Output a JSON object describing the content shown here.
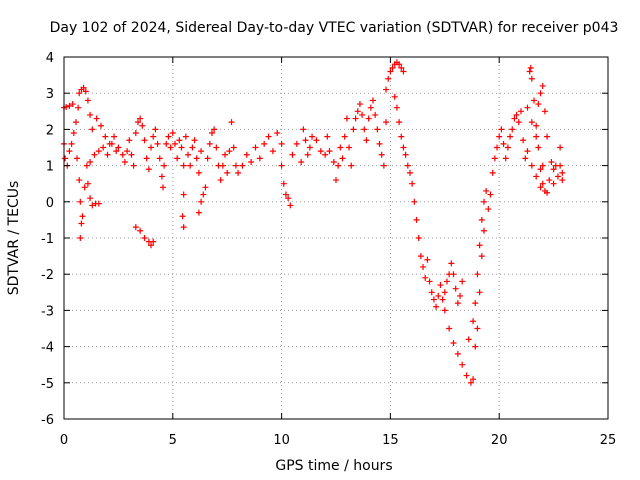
{
  "chart_data": {
    "type": "scatter",
    "title": "Day 102 of 2024, Sidereal Day-to-day VTEC variation (SDTVAR) for receiver p043",
    "xlabel": "GPS time / hours",
    "ylabel": "SDTVAR / TECUs",
    "xlim": [
      0,
      25
    ],
    "ylim": [
      -6,
      4
    ],
    "xticks": [
      0,
      5,
      10,
      15,
      20,
      25
    ],
    "yticks": [
      -6,
      -5,
      -4,
      -3,
      -2,
      -1,
      0,
      1,
      2,
      3,
      4
    ],
    "grid": true,
    "marker": "+",
    "color": "#ff0000",
    "series": [
      {
        "name": "SDTVAR",
        "points": [
          [
            0.0,
            2.6
          ],
          [
            0.1,
            2.62
          ],
          [
            0.25,
            2.65
          ],
          [
            0.4,
            2.7
          ],
          [
            0.0,
            1.6
          ],
          [
            0.05,
            1.2
          ],
          [
            0.15,
            1.0
          ],
          [
            0.25,
            1.4
          ],
          [
            0.35,
            1.6
          ],
          [
            0.45,
            1.9
          ],
          [
            0.55,
            2.2
          ],
          [
            0.65,
            2.6
          ],
          [
            0.7,
            3.0
          ],
          [
            0.8,
            3.1
          ],
          [
            0.9,
            3.15
          ],
          [
            1.0,
            3.05
          ],
          [
            1.1,
            2.8
          ],
          [
            1.2,
            2.4
          ],
          [
            0.6,
            1.2
          ],
          [
            0.7,
            0.6
          ],
          [
            0.75,
            0.0
          ],
          [
            0.8,
            -0.6
          ],
          [
            0.75,
            -1.0
          ],
          [
            0.85,
            -0.4
          ],
          [
            0.95,
            0.4
          ],
          [
            1.05,
            1.0
          ],
          [
            1.1,
            0.5
          ],
          [
            1.2,
            0.1
          ],
          [
            1.3,
            -0.1
          ],
          [
            1.45,
            -0.05
          ],
          [
            1.6,
            -0.05
          ],
          [
            1.2,
            1.1
          ],
          [
            1.4,
            1.3
          ],
          [
            1.6,
            1.4
          ],
          [
            1.8,
            1.5
          ],
          [
            2.0,
            1.3
          ],
          [
            2.2,
            1.6
          ],
          [
            2.4,
            1.4
          ],
          [
            1.3,
            2.0
          ],
          [
            1.5,
            2.3
          ],
          [
            1.7,
            2.1
          ],
          [
            1.9,
            1.8
          ],
          [
            2.1,
            1.6
          ],
          [
            2.3,
            1.8
          ],
          [
            2.5,
            1.5
          ],
          [
            2.7,
            1.3
          ],
          [
            2.8,
            1.1
          ],
          [
            2.9,
            1.4
          ],
          [
            3.0,
            1.7
          ],
          [
            3.1,
            1.3
          ],
          [
            3.2,
            1.0
          ],
          [
            3.3,
            1.9
          ],
          [
            3.4,
            2.2
          ],
          [
            3.5,
            2.3
          ],
          [
            3.6,
            2.1
          ],
          [
            3.7,
            1.7
          ],
          [
            3.8,
            1.2
          ],
          [
            3.9,
            0.9
          ],
          [
            4.0,
            1.5
          ],
          [
            4.1,
            1.8
          ],
          [
            4.2,
            2.0
          ],
          [
            4.3,
            1.6
          ],
          [
            3.3,
            -0.7
          ],
          [
            3.5,
            -0.8
          ],
          [
            3.7,
            -1.0
          ],
          [
            3.9,
            -1.1
          ],
          [
            4.0,
            -1.2
          ],
          [
            4.1,
            -1.1
          ],
          [
            4.4,
            1.2
          ],
          [
            4.5,
            0.7
          ],
          [
            4.55,
            0.4
          ],
          [
            4.6,
            1.0
          ],
          [
            4.7,
            1.6
          ],
          [
            4.8,
            1.8
          ],
          [
            4.9,
            1.5
          ],
          [
            5.0,
            1.9
          ],
          [
            5.1,
            1.6
          ],
          [
            5.2,
            1.2
          ],
          [
            5.3,
            1.7
          ],
          [
            5.4,
            1.5
          ],
          [
            5.5,
            1.0
          ],
          [
            5.5,
            0.2
          ],
          [
            5.45,
            -0.4
          ],
          [
            5.5,
            -0.7
          ],
          [
            5.6,
            1.8
          ],
          [
            5.7,
            1.3
          ],
          [
            5.8,
            1.0
          ],
          [
            5.9,
            1.5
          ],
          [
            6.0,
            1.7
          ],
          [
            6.1,
            1.2
          ],
          [
            6.2,
            0.8
          ],
          [
            6.3,
            1.4
          ],
          [
            6.3,
            0.0
          ],
          [
            6.4,
            0.2
          ],
          [
            6.5,
            0.4
          ],
          [
            6.2,
            -0.3
          ],
          [
            6.6,
            1.2
          ],
          [
            6.7,
            1.6
          ],
          [
            6.8,
            1.9
          ],
          [
            6.9,
            2.0
          ],
          [
            7.0,
            1.5
          ],
          [
            7.1,
            1.0
          ],
          [
            7.2,
            0.6
          ],
          [
            7.3,
            1.0
          ],
          [
            7.4,
            1.3
          ],
          [
            7.5,
            0.8
          ],
          [
            7.6,
            1.4
          ],
          [
            7.7,
            2.2
          ],
          [
            7.8,
            1.5
          ],
          [
            7.9,
            1.0
          ],
          [
            8.0,
            0.8
          ],
          [
            8.2,
            1.0
          ],
          [
            8.4,
            1.3
          ],
          [
            8.6,
            1.1
          ],
          [
            8.8,
            1.5
          ],
          [
            9.0,
            1.2
          ],
          [
            9.2,
            1.6
          ],
          [
            9.4,
            1.8
          ],
          [
            9.6,
            1.4
          ],
          [
            9.8,
            1.9
          ],
          [
            10.0,
            1.6
          ],
          [
            10.0,
            1.0
          ],
          [
            10.1,
            0.5
          ],
          [
            10.2,
            0.2
          ],
          [
            10.3,
            0.1
          ],
          [
            10.4,
            -0.1
          ],
          [
            10.5,
            1.3
          ],
          [
            10.7,
            1.6
          ],
          [
            10.9,
            1.1
          ],
          [
            11.0,
            2.0
          ],
          [
            11.1,
            1.7
          ],
          [
            11.2,
            1.3
          ],
          [
            11.3,
            1.5
          ],
          [
            11.4,
            1.8
          ],
          [
            11.6,
            1.7
          ],
          [
            11.8,
            1.4
          ],
          [
            12.0,
            1.3
          ],
          [
            12.1,
            1.8
          ],
          [
            12.2,
            1.4
          ],
          [
            12.4,
            1.1
          ],
          [
            12.5,
            0.6
          ],
          [
            12.6,
            1.0
          ],
          [
            12.7,
            1.5
          ],
          [
            12.8,
            1.2
          ],
          [
            12.9,
            1.8
          ],
          [
            13.0,
            2.3
          ],
          [
            13.1,
            1.5
          ],
          [
            13.2,
            1.0
          ],
          [
            13.3,
            2.0
          ],
          [
            13.4,
            2.3
          ],
          [
            13.5,
            2.5
          ],
          [
            13.6,
            2.7
          ],
          [
            13.7,
            2.4
          ],
          [
            13.8,
            2.0
          ],
          [
            13.9,
            1.7
          ],
          [
            14.0,
            2.3
          ],
          [
            14.1,
            2.6
          ],
          [
            14.2,
            2.8
          ],
          [
            14.3,
            2.4
          ],
          [
            14.4,
            2.0
          ],
          [
            14.5,
            1.6
          ],
          [
            14.6,
            1.3
          ],
          [
            14.7,
            1.0
          ],
          [
            14.8,
            2.2
          ],
          [
            14.8,
            3.1
          ],
          [
            14.9,
            3.4
          ],
          [
            15.0,
            3.6
          ],
          [
            15.1,
            3.7
          ],
          [
            15.2,
            3.8
          ],
          [
            15.3,
            3.85
          ],
          [
            15.4,
            3.8
          ],
          [
            15.5,
            3.7
          ],
          [
            15.6,
            3.6
          ],
          [
            15.2,
            2.9
          ],
          [
            15.3,
            2.6
          ],
          [
            15.4,
            2.2
          ],
          [
            15.5,
            1.8
          ],
          [
            15.6,
            1.5
          ],
          [
            15.7,
            1.3
          ],
          [
            15.8,
            1.0
          ],
          [
            15.9,
            0.8
          ],
          [
            16.0,
            0.5
          ],
          [
            16.1,
            0.0
          ],
          [
            16.2,
            -0.5
          ],
          [
            16.3,
            -1.0
          ],
          [
            16.4,
            -1.5
          ],
          [
            16.5,
            -1.8
          ],
          [
            16.6,
            -2.1
          ],
          [
            16.7,
            -1.6
          ],
          [
            16.8,
            -2.2
          ],
          [
            16.9,
            -2.5
          ],
          [
            17.0,
            -2.7
          ],
          [
            17.1,
            -2.9
          ],
          [
            17.2,
            -2.6
          ],
          [
            17.3,
            -2.3
          ],
          [
            17.4,
            -2.7
          ],
          [
            17.5,
            -2.5
          ],
          [
            17.6,
            -2.2
          ],
          [
            17.7,
            -2.0
          ],
          [
            17.8,
            -1.7
          ],
          [
            17.9,
            -2.0
          ],
          [
            18.0,
            -2.4
          ],
          [
            18.1,
            -2.8
          ],
          [
            18.2,
            -2.6
          ],
          [
            18.3,
            -2.2
          ],
          [
            17.5,
            -3.0
          ],
          [
            17.7,
            -3.5
          ],
          [
            17.9,
            -3.9
          ],
          [
            18.1,
            -4.2
          ],
          [
            18.3,
            -4.5
          ],
          [
            18.5,
            -4.8
          ],
          [
            18.7,
            -5.0
          ],
          [
            18.8,
            -4.9
          ],
          [
            18.6,
            -3.8
          ],
          [
            18.8,
            -3.3
          ],
          [
            18.9,
            -2.8
          ],
          [
            19.0,
            -2.0
          ],
          [
            19.1,
            -1.2
          ],
          [
            19.2,
            -0.5
          ],
          [
            19.3,
            0.0
          ],
          [
            19.4,
            0.3
          ],
          [
            18.9,
            -4.0
          ],
          [
            19.0,
            -3.5
          ],
          [
            19.1,
            -2.5
          ],
          [
            19.2,
            -1.5
          ],
          [
            19.3,
            -0.8
          ],
          [
            19.5,
            -0.2
          ],
          [
            19.6,
            0.2
          ],
          [
            19.7,
            0.8
          ],
          [
            19.8,
            1.2
          ],
          [
            19.9,
            1.5
          ],
          [
            20.0,
            1.8
          ],
          [
            20.1,
            2.0
          ],
          [
            20.2,
            1.6
          ],
          [
            20.3,
            1.2
          ],
          [
            20.4,
            1.5
          ],
          [
            20.5,
            1.8
          ],
          [
            20.6,
            2.0
          ],
          [
            20.7,
            2.3
          ],
          [
            20.8,
            2.4
          ],
          [
            20.9,
            2.2
          ],
          [
            21.0,
            2.5
          ],
          [
            21.1,
            1.7
          ],
          [
            21.2,
            1.2
          ],
          [
            21.3,
            1.4
          ],
          [
            21.4,
            3.6
          ],
          [
            21.45,
            3.7
          ],
          [
            21.5,
            3.4
          ],
          [
            21.6,
            2.8
          ],
          [
            21.7,
            2.1
          ],
          [
            21.8,
            1.5
          ],
          [
            21.9,
            0.9
          ],
          [
            22.0,
            0.5
          ],
          [
            21.3,
            2.6
          ],
          [
            21.5,
            2.2
          ],
          [
            21.7,
            1.8
          ],
          [
            21.8,
            2.7
          ],
          [
            21.9,
            3.0
          ],
          [
            22.0,
            3.2
          ],
          [
            22.1,
            2.5
          ],
          [
            22.2,
            1.8
          ],
          [
            21.5,
            1.0
          ],
          [
            21.7,
            0.7
          ],
          [
            21.9,
            0.4
          ],
          [
            22.1,
            0.3
          ],
          [
            22.3,
            0.6
          ],
          [
            22.5,
            0.9
          ],
          [
            22.7,
            0.7
          ],
          [
            22.9,
            0.8
          ],
          [
            22.4,
            1.1
          ],
          [
            22.6,
            1.0
          ],
          [
            22.8,
            1.5
          ],
          [
            22.9,
            0.6
          ],
          [
            22.2,
            0.25
          ],
          [
            22.0,
            1.0
          ],
          [
            22.5,
            0.5
          ],
          [
            22.8,
            1.0
          ]
        ]
      }
    ]
  }
}
